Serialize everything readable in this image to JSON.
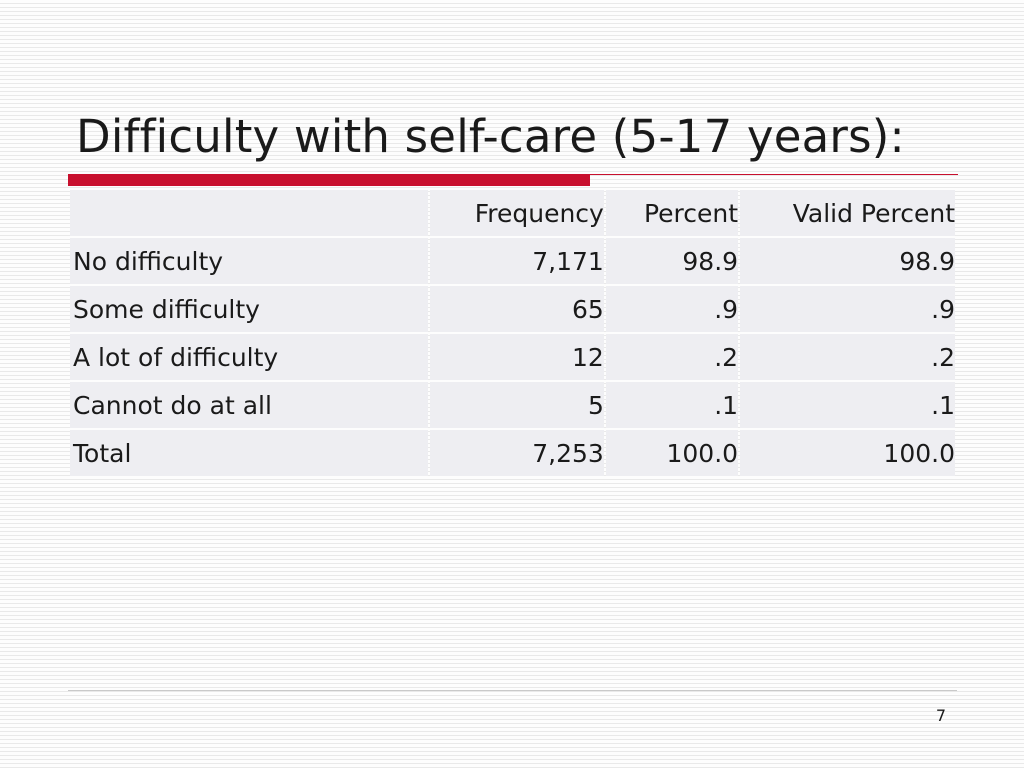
{
  "slide": {
    "title": "Difficulty with self-care (5-17 years):",
    "page_number": "7",
    "accent_color": "#c8102e"
  },
  "table": {
    "columns": [
      "",
      "Frequency",
      "Percent",
      "Valid Percent"
    ],
    "rows": [
      {
        "label": "No difficulty",
        "frequency": "7,171",
        "percent": "98.9",
        "valid_percent": "98.9"
      },
      {
        "label": "Some difficulty",
        "frequency": "65",
        "percent": ".9",
        "valid_percent": ".9"
      },
      {
        "label": "A lot of difficulty",
        "frequency": "12",
        "percent": ".2",
        "valid_percent": ".2"
      },
      {
        "label": "Cannot do at all",
        "frequency": "5",
        "percent": ".1",
        "valid_percent": ".1"
      },
      {
        "label": "Total",
        "frequency": "7,253",
        "percent": "100.0",
        "valid_percent": "100.0"
      }
    ]
  }
}
